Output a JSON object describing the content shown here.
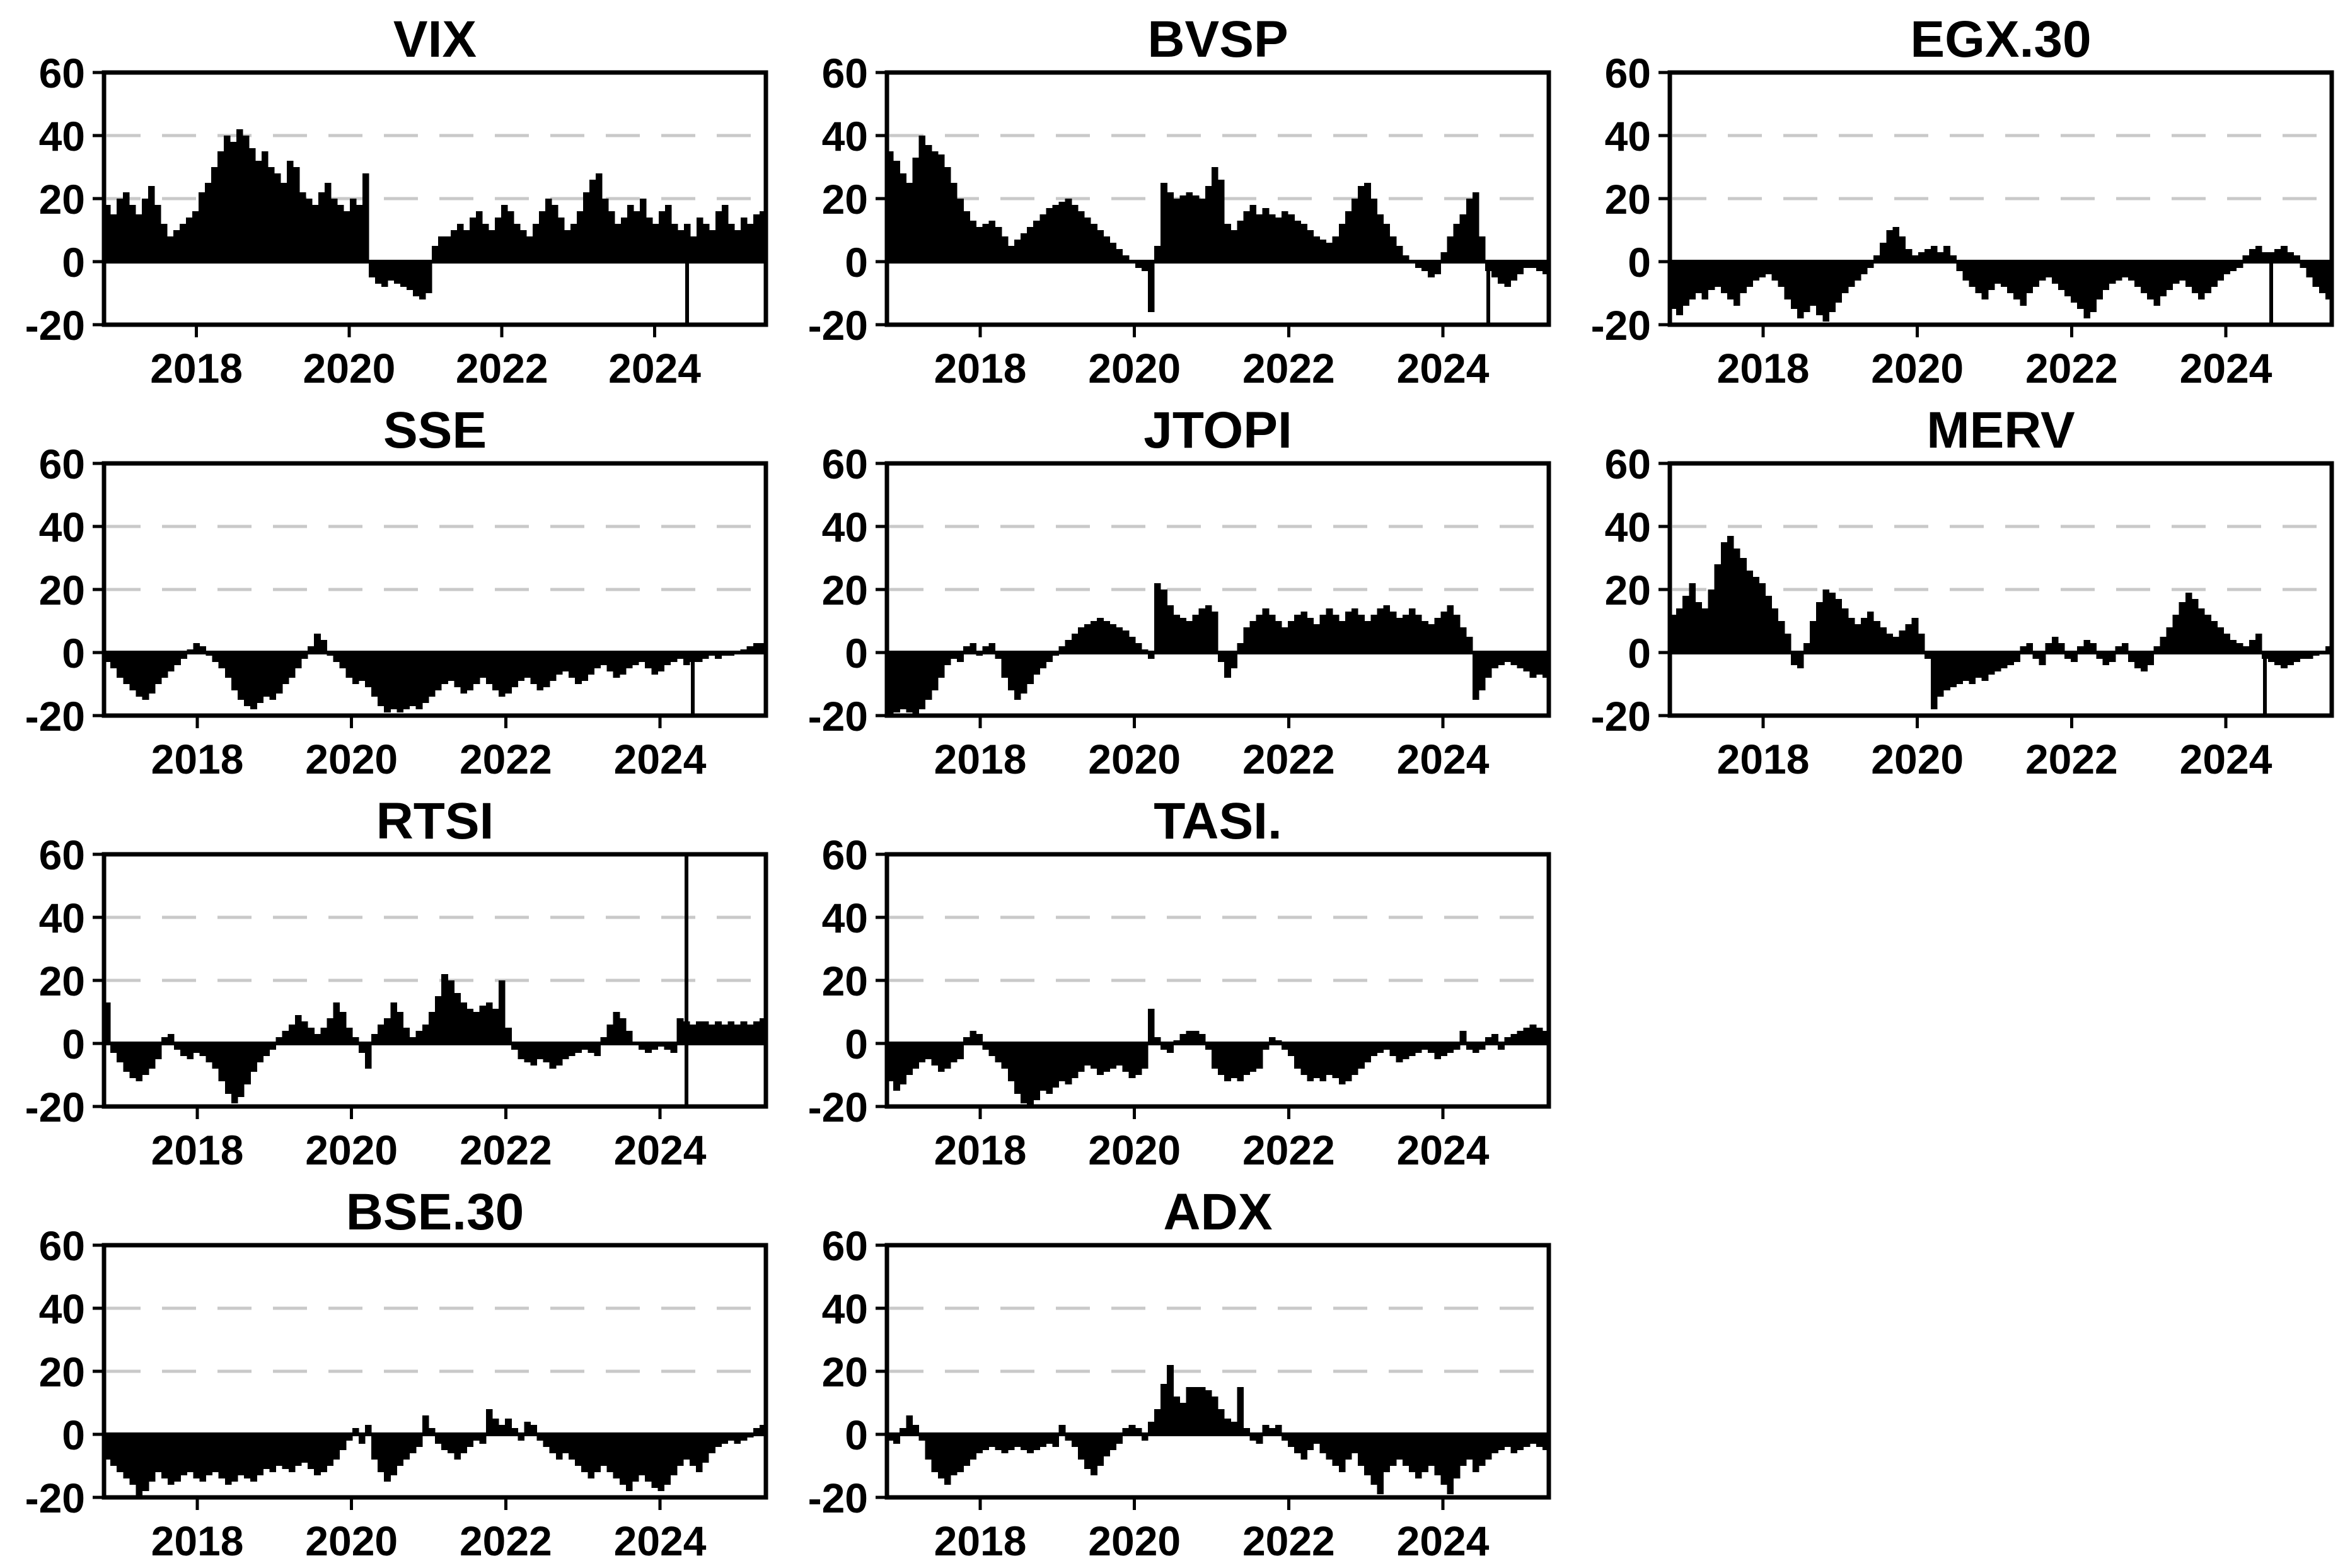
{
  "figure": {
    "background": "#ffffff",
    "bar_color": "#000000",
    "axis_color": "#000000",
    "grid_color": "#c9c9c9",
    "ylim": [
      -20,
      60
    ],
    "y_ticks": [
      60,
      40,
      20,
      0,
      -20
    ],
    "x_ticks": [
      2018,
      2020,
      2022,
      2024
    ],
    "grid_lines_at": [
      20,
      40
    ],
    "x_start_year": 2016.79,
    "x_step_years": 0.08333,
    "grid": {
      "rows": 4,
      "cols": 3
    }
  },
  "chart_data": [
    {
      "type": "bar",
      "title": "VIX",
      "row": 0,
      "col": 0,
      "xlabel": "",
      "ylabel": "",
      "ylim": [
        -20,
        60
      ],
      "spikes_down": [
        92
      ],
      "spikes_full": [],
      "values": [
        18,
        15,
        20,
        22,
        18,
        15,
        20,
        24,
        18,
        12,
        8,
        10,
        12,
        14,
        16,
        22,
        25,
        30,
        35,
        40,
        38,
        42,
        40,
        36,
        32,
        35,
        30,
        28,
        25,
        32,
        30,
        22,
        20,
        18,
        22,
        25,
        20,
        18,
        16,
        20,
        18,
        28,
        -5,
        -7,
        -8,
        -6,
        -7,
        -8,
        -9,
        -11,
        -12,
        -10,
        5,
        8,
        8,
        10,
        12,
        10,
        14,
        16,
        12,
        10,
        14,
        18,
        16,
        12,
        10,
        8,
        12,
        16,
        20,
        18,
        14,
        10,
        12,
        16,
        22,
        26,
        28,
        20,
        16,
        12,
        14,
        18,
        16,
        20,
        14,
        12,
        16,
        18,
        12,
        10,
        12,
        8,
        14,
        12,
        10,
        16,
        18,
        12,
        10,
        14,
        12,
        15,
        16
      ]
    },
    {
      "type": "bar",
      "title": "BVSP",
      "row": 0,
      "col": 1,
      "xlabel": "",
      "ylabel": "",
      "ylim": [
        -20,
        60
      ],
      "spikes_down": [
        94
      ],
      "spikes_full": [],
      "values": [
        35,
        32,
        28,
        25,
        33,
        40,
        37,
        35,
        34,
        30,
        25,
        20,
        16,
        13,
        11,
        12,
        13,
        11,
        8,
        5,
        7,
        9,
        11,
        13,
        15,
        17,
        18,
        19,
        20,
        18,
        16,
        14,
        12,
        10,
        8,
        6,
        4,
        2,
        0,
        -2,
        -3,
        -16,
        5,
        25,
        22,
        20,
        21,
        22,
        21,
        20,
        24,
        30,
        26,
        12,
        10,
        13,
        16,
        18,
        15,
        17,
        15,
        14,
        16,
        15,
        13,
        12,
        10,
        8,
        7,
        6,
        8,
        12,
        16,
        20,
        24,
        25,
        20,
        15,
        12,
        8,
        5,
        2,
        0,
        -2,
        -3,
        -5,
        -4,
        3,
        8,
        12,
        15,
        20,
        22,
        8,
        -3,
        -5,
        -7,
        -8,
        -6,
        -4,
        -2,
        -2,
        -3,
        -4
      ]
    },
    {
      "type": "bar",
      "title": "EGX.30",
      "row": 0,
      "col": 2,
      "xlabel": "",
      "ylabel": "",
      "ylim": [
        -20,
        60
      ],
      "spikes_down": [
        94
      ],
      "spikes_full": [],
      "values": [
        -15,
        -17,
        -14,
        -12,
        -10,
        -12,
        -9,
        -8,
        -10,
        -12,
        -14,
        -10,
        -8,
        -6,
        -5,
        -4,
        -6,
        -8,
        -12,
        -15,
        -18,
        -16,
        -14,
        -17,
        -19,
        -16,
        -13,
        -10,
        -8,
        -6,
        -4,
        -2,
        2,
        6,
        10,
        11,
        8,
        4,
        2,
        3,
        4,
        5,
        3,
        5,
        2,
        -3,
        -6,
        -8,
        -10,
        -12,
        -9,
        -7,
        -8,
        -10,
        -12,
        -14,
        -10,
        -8,
        -6,
        -5,
        -7,
        -9,
        -11,
        -13,
        -15,
        -18,
        -16,
        -12,
        -9,
        -7,
        -6,
        -5,
        -6,
        -8,
        -10,
        -12,
        -14,
        -11,
        -9,
        -7,
        -6,
        -8,
        -10,
        -12,
        -10,
        -8,
        -6,
        -4,
        -3,
        -2,
        2,
        4,
        5,
        3,
        3,
        4,
        5,
        3,
        2,
        -2,
        -5,
        -8,
        -10,
        -12
      ]
    },
    {
      "type": "bar",
      "title": "SSE",
      "row": 1,
      "col": 0,
      "xlabel": "",
      "ylabel": "",
      "ylim": [
        -20,
        60
      ],
      "spikes_down": [
        92
      ],
      "spikes_full": [],
      "values": [
        -3,
        -5,
        -8,
        -10,
        -12,
        -14,
        -15,
        -13,
        -10,
        -8,
        -6,
        -4,
        -2,
        1,
        3,
        2,
        -1,
        -3,
        -5,
        -8,
        -12,
        -15,
        -17,
        -18,
        -16,
        -14,
        -15,
        -13,
        -10,
        -8,
        -5,
        -2,
        2,
        6,
        4,
        -1,
        -3,
        -5,
        -8,
        -10,
        -9,
        -11,
        -14,
        -17,
        -19,
        -18,
        -19,
        -18,
        -17,
        -18,
        -16,
        -14,
        -12,
        -10,
        -9,
        -11,
        -13,
        -12,
        -10,
        -8,
        -10,
        -12,
        -14,
        -13,
        -11,
        -9,
        -8,
        -10,
        -12,
        -11,
        -9,
        -7,
        -6,
        -8,
        -10,
        -9,
        -7,
        -5,
        -4,
        -6,
        -8,
        -7,
        -5,
        -4,
        -3,
        -5,
        -7,
        -6,
        -4,
        -3,
        -2,
        -4,
        -3,
        -3,
        -2,
        -1,
        -2,
        -1,
        -1,
        0,
        1,
        2,
        3,
        3
      ]
    },
    {
      "type": "bar",
      "title": "JTOPI",
      "row": 1,
      "col": 1,
      "xlabel": "",
      "ylabel": "",
      "ylim": [
        -20,
        60
      ],
      "spikes_down": [],
      "spikes_full": [],
      "values": [
        -20,
        -19,
        -18,
        -19,
        -20,
        -18,
        -15,
        -12,
        -8,
        -4,
        -2,
        -3,
        2,
        3,
        -1,
        2,
        3,
        -2,
        -8,
        -12,
        -15,
        -13,
        -10,
        -7,
        -5,
        -3,
        -1,
        2,
        4,
        6,
        8,
        9,
        10,
        11,
        10,
        9,
        8,
        7,
        5,
        3,
        1,
        -2,
        22,
        20,
        15,
        12,
        11,
        10,
        12,
        14,
        15,
        13,
        -3,
        -8,
        -5,
        3,
        8,
        10,
        12,
        14,
        12,
        10,
        8,
        10,
        12,
        13,
        11,
        9,
        12,
        14,
        12,
        10,
        13,
        14,
        12,
        10,
        12,
        14,
        15,
        13,
        11,
        12,
        14,
        12,
        10,
        9,
        11,
        13,
        15,
        12,
        8,
        5,
        -15,
        -12,
        -8,
        -5,
        -4,
        -3,
        -4,
        -5,
        -6,
        -8,
        -7,
        -8
      ]
    },
    {
      "type": "bar",
      "title": "MERV",
      "row": 1,
      "col": 2,
      "xlabel": "",
      "ylabel": "",
      "ylim": [
        -20,
        60
      ],
      "spikes_down": [
        93
      ],
      "spikes_full": [],
      "values": [
        12,
        14,
        18,
        22,
        16,
        14,
        20,
        28,
        35,
        37,
        33,
        30,
        26,
        24,
        22,
        18,
        14,
        10,
        6,
        -4,
        -5,
        3,
        10,
        16,
        20,
        19,
        17,
        14,
        11,
        9,
        11,
        13,
        10,
        8,
        6,
        5,
        7,
        9,
        11,
        6,
        -2,
        -18,
        -14,
        -12,
        -11,
        -10,
        -9,
        -10,
        -8,
        -9,
        -7,
        -6,
        -5,
        -4,
        -3,
        2,
        3,
        -2,
        -4,
        3,
        5,
        3,
        -2,
        -3,
        2,
        4,
        3,
        -2,
        -4,
        -3,
        2,
        3,
        -3,
        -5,
        -6,
        -4,
        2,
        5,
        8,
        12,
        16,
        19,
        17,
        14,
        12,
        10,
        8,
        6,
        4,
        3,
        2,
        4,
        6,
        -2,
        -3,
        -4,
        -5,
        -4,
        -3,
        -2,
        -2,
        -1,
        0,
        2
      ]
    },
    {
      "type": "bar",
      "title": "RTSI",
      "row": 2,
      "col": 0,
      "xlabel": "",
      "ylabel": "",
      "ylim": [
        -20,
        60
      ],
      "spikes_down": [],
      "spikes_full": [
        91
      ],
      "values": [
        13,
        -3,
        -6,
        -9,
        -11,
        -12,
        -10,
        -8,
        -5,
        2,
        3,
        -2,
        -4,
        -5,
        -3,
        -4,
        -6,
        -8,
        -12,
        -16,
        -19,
        -17,
        -13,
        -9,
        -6,
        -4,
        -2,
        2,
        4,
        6,
        9,
        7,
        5,
        3,
        5,
        8,
        13,
        10,
        5,
        2,
        -3,
        -8,
        3,
        6,
        8,
        13,
        10,
        5,
        2,
        4,
        6,
        10,
        15,
        22,
        20,
        16,
        13,
        11,
        10,
        12,
        13,
        11,
        20,
        5,
        -2,
        -5,
        -6,
        -7,
        -5,
        -6,
        -8,
        -7,
        -5,
        -4,
        -3,
        -2,
        -3,
        -4,
        2,
        6,
        10,
        8,
        4,
        0,
        -2,
        -3,
        -2,
        -1,
        -2,
        -3,
        8,
        7,
        6,
        7,
        7,
        6,
        7,
        6,
        7,
        6,
        7,
        6,
        7,
        8
      ]
    },
    {
      "type": "bar",
      "title": "TASI.",
      "row": 2,
      "col": 1,
      "xlabel": "",
      "ylabel": "",
      "ylim": [
        -20,
        60
      ],
      "spikes_down": [],
      "spikes_full": [],
      "values": [
        -12,
        -15,
        -13,
        -10,
        -8,
        -6,
        -5,
        -7,
        -9,
        -8,
        -6,
        -5,
        2,
        4,
        3,
        -2,
        -4,
        -6,
        -8,
        -12,
        -16,
        -19,
        -20,
        -18,
        -15,
        -16,
        -14,
        -12,
        -13,
        -11,
        -9,
        -7,
        -8,
        -10,
        -9,
        -8,
        -7,
        -9,
        -11,
        -10,
        -8,
        11,
        2,
        -2,
        -3,
        1,
        3,
        4,
        4,
        3,
        -2,
        -8,
        -10,
        -12,
        -11,
        -12,
        -10,
        -9,
        -8,
        -2,
        2,
        1,
        -2,
        -4,
        -8,
        -10,
        -12,
        -11,
        -12,
        -10,
        -11,
        -13,
        -12,
        -10,
        -8,
        -6,
        -4,
        -3,
        -2,
        -4,
        -6,
        -5,
        -4,
        -3,
        -2,
        -3,
        -5,
        -4,
        -3,
        -2,
        4,
        -2,
        -3,
        -2,
        2,
        3,
        -2,
        2,
        3,
        4,
        5,
        6,
        5,
        4
      ]
    },
    {
      "type": "bar",
      "title": "BSE.30",
      "row": 3,
      "col": 0,
      "xlabel": "",
      "ylabel": "",
      "ylim": [
        -20,
        60
      ],
      "spikes_down": [],
      "spikes_full": [],
      "values": [
        -8,
        -10,
        -12,
        -14,
        -16,
        -20,
        -18,
        -15,
        -12,
        -14,
        -16,
        -15,
        -13,
        -12,
        -14,
        -15,
        -13,
        -12,
        -14,
        -16,
        -15,
        -13,
        -14,
        -15,
        -13,
        -11,
        -12,
        -10,
        -11,
        -12,
        -10,
        -9,
        -11,
        -13,
        -12,
        -10,
        -8,
        -5,
        -2,
        2,
        -3,
        3,
        -8,
        -12,
        -15,
        -13,
        -10,
        -8,
        -6,
        -4,
        6,
        2,
        -3,
        -5,
        -6,
        -8,
        -6,
        -4,
        -2,
        -3,
        8,
        5,
        3,
        5,
        2,
        -2,
        4,
        3,
        -2,
        -4,
        -6,
        -8,
        -6,
        -8,
        -10,
        -12,
        -14,
        -12,
        -10,
        -12,
        -14,
        -16,
        -18,
        -15,
        -13,
        -15,
        -17,
        -18,
        -16,
        -13,
        -10,
        -8,
        -10,
        -12,
        -9,
        -6,
        -4,
        -3,
        -2,
        -3,
        -2,
        -1,
        2,
        3
      ]
    },
    {
      "type": "bar",
      "title": "ADX",
      "row": 3,
      "col": 1,
      "xlabel": "",
      "ylabel": "",
      "ylim": [
        -20,
        60
      ],
      "spikes_down": [],
      "spikes_full": [],
      "values": [
        -2,
        -3,
        2,
        6,
        3,
        -2,
        -8,
        -12,
        -14,
        -16,
        -13,
        -12,
        -10,
        -8,
        -6,
        -5,
        -4,
        -5,
        -6,
        -5,
        -4,
        -5,
        -6,
        -5,
        -4,
        -3,
        -4,
        3,
        -2,
        -4,
        -8,
        -11,
        -13,
        -10,
        -7,
        -5,
        -3,
        2,
        3,
        2,
        -2,
        4,
        8,
        16,
        22,
        12,
        10,
        15,
        15,
        15,
        14,
        12,
        8,
        5,
        4,
        15,
        2,
        -2,
        -3,
        3,
        2,
        3,
        -2,
        -4,
        -6,
        -8,
        -5,
        -3,
        -6,
        -8,
        -10,
        -12,
        -8,
        -6,
        -10,
        -13,
        -16,
        -19,
        -12,
        -10,
        -8,
        -10,
        -12,
        -14,
        -12,
        -10,
        -13,
        -16,
        -19,
        -14,
        -10,
        -8,
        -12,
        -10,
        -8,
        -6,
        -5,
        -4,
        -6,
        -5,
        -4,
        -3,
        -4,
        -5
      ]
    }
  ]
}
